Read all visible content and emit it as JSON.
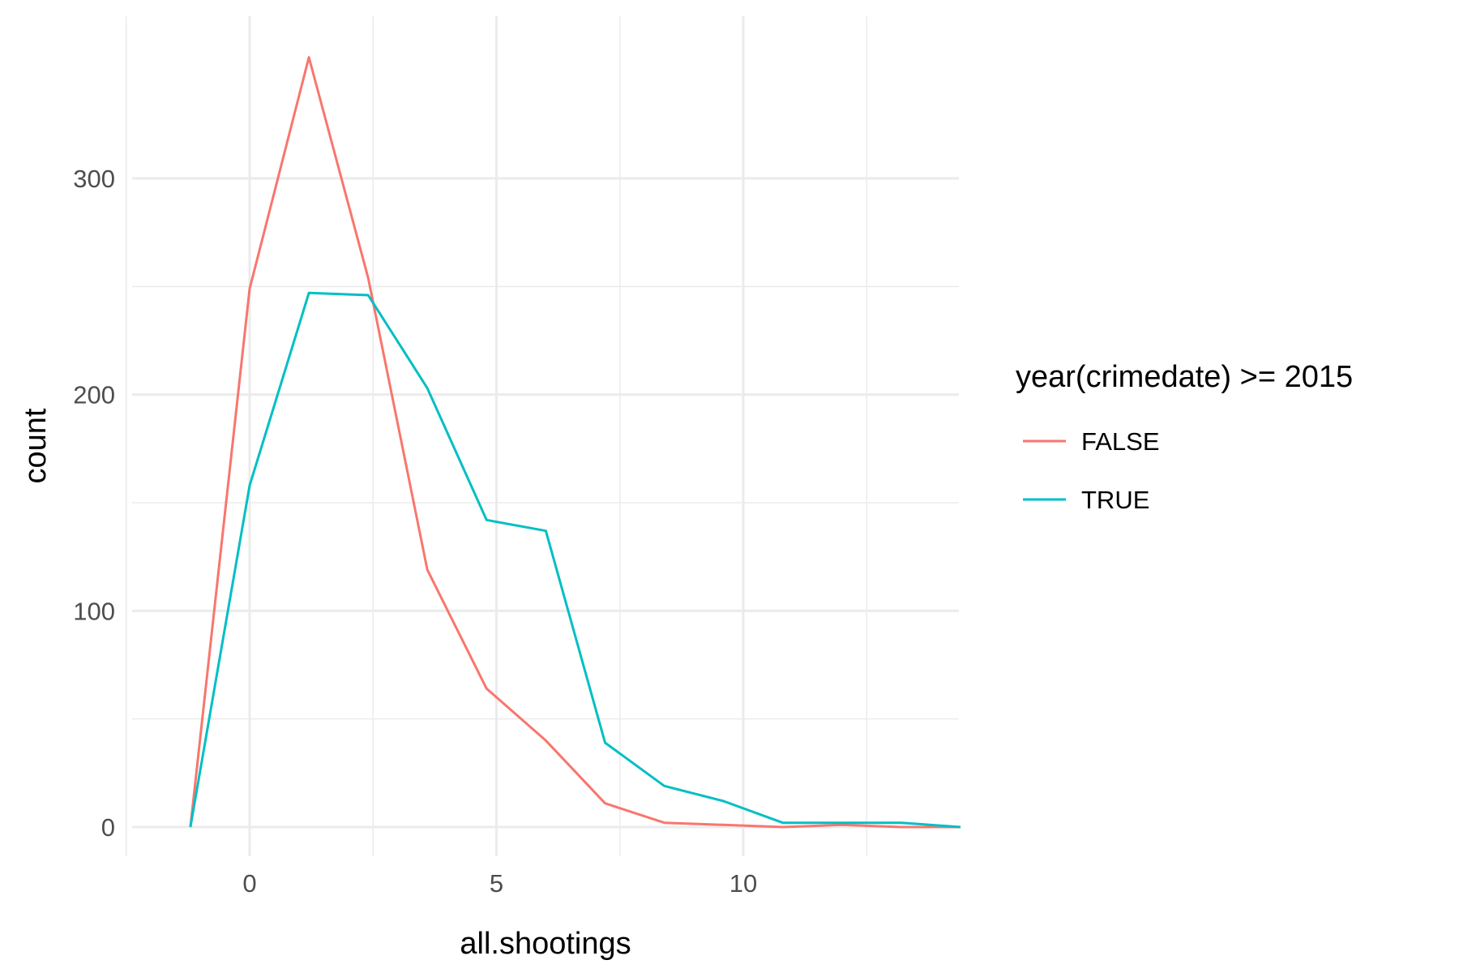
{
  "chart_data": {
    "type": "line",
    "title": "",
    "xlabel": "all.shootings",
    "ylabel": "count",
    "x_ticks": [
      0,
      5,
      10
    ],
    "y_ticks": [
      0,
      100,
      200,
      300
    ],
    "xlim": [
      -4.8,
      28.8
    ],
    "ylim": [
      -18,
      360
    ],
    "grid": true,
    "legend": {
      "title": "year(crimedate) >= 2015",
      "placement": "right"
    },
    "series": [
      {
        "name": "FALSE",
        "color": "#F8766D",
        "points": [
          {
            "x": -1.2,
            "y": 0
          },
          {
            "x": 0,
            "y": 249
          },
          {
            "x": 1.2,
            "y": 356
          },
          {
            "x": 2.4,
            "y": 254
          },
          {
            "x": 3.6,
            "y": 119
          },
          {
            "x": 4.8,
            "y": 64
          },
          {
            "x": 6.0,
            "y": 40
          },
          {
            "x": 7.2,
            "y": 11
          },
          {
            "x": 8.4,
            "y": 2
          },
          {
            "x": 9.6,
            "y": 1
          },
          {
            "x": 10.8,
            "y": 0
          },
          {
            "x": 12.0,
            "y": 1
          },
          {
            "x": 13.2,
            "y": 0
          },
          {
            "x": 14.4,
            "y": 0
          }
        ]
      },
      {
        "name": "TRUE",
        "color": "#00BFC4",
        "points": [
          {
            "x": -1.2,
            "y": 0
          },
          {
            "x": 0,
            "y": 158
          },
          {
            "x": 1.2,
            "y": 247
          },
          {
            "x": 2.4,
            "y": 246
          },
          {
            "x": 3.6,
            "y": 203
          },
          {
            "x": 4.8,
            "y": 142
          },
          {
            "x": 6.0,
            "y": 137
          },
          {
            "x": 7.2,
            "y": 39
          },
          {
            "x": 8.4,
            "y": 19
          },
          {
            "x": 9.6,
            "y": 12
          },
          {
            "x": 10.8,
            "y": 2
          },
          {
            "x": 12.0,
            "y": 2
          },
          {
            "x": 13.2,
            "y": 2
          },
          {
            "x": 14.4,
            "y": 0
          }
        ]
      }
    ]
  }
}
